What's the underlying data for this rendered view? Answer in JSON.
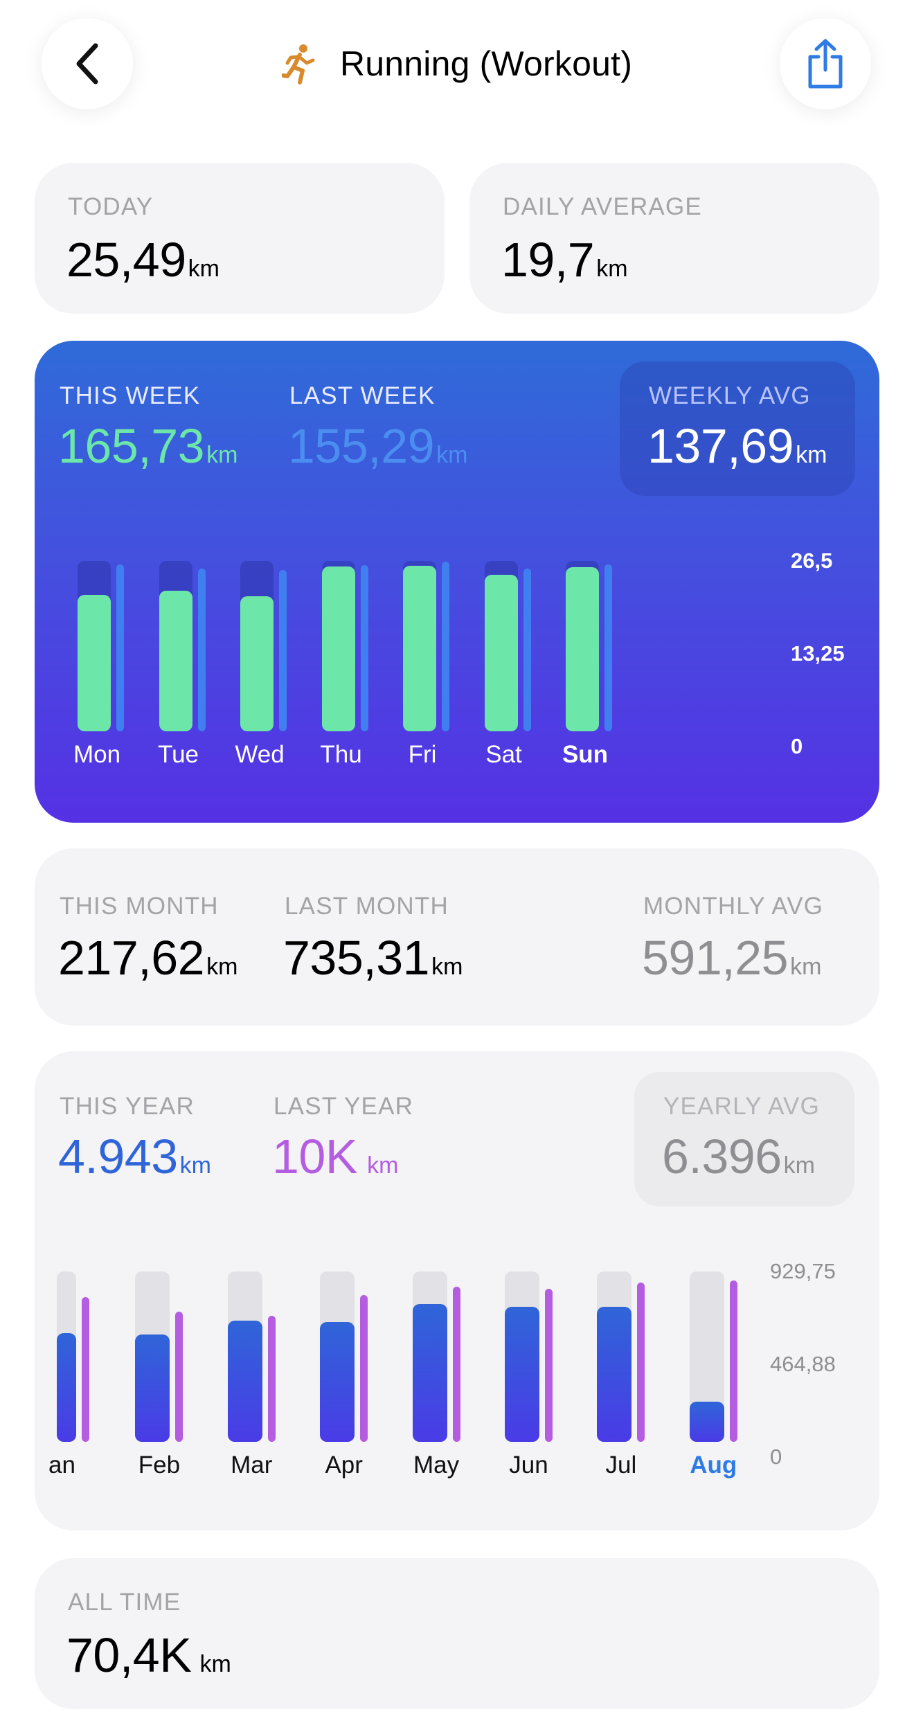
{
  "header": {
    "title": "Running (Workout)",
    "back_icon": "chevron-left-icon",
    "share_icon": "share-icon",
    "activity_icon": "running-person-icon",
    "activity_icon_color": "#d98a2c",
    "share_icon_color": "#2f7be6"
  },
  "today": {
    "label": "TODAY",
    "value": "25,49",
    "unit": "km"
  },
  "daily_average": {
    "label": "DAILY AVERAGE",
    "value": "19,7",
    "unit": "km"
  },
  "week": {
    "this_week": {
      "label": "THIS WEEK",
      "value": "165,73",
      "unit": "km",
      "color": "#6de6aa"
    },
    "last_week": {
      "label": "LAST WEEK",
      "value": "155,29",
      "unit": "km",
      "color": "#4b8ef0"
    },
    "weekly_avg": {
      "label": "WEEKLY AVG",
      "value": "137,69",
      "unit": "km"
    },
    "y_ticks": [
      "26,5",
      "13,25",
      "0"
    ]
  },
  "month": {
    "this_month": {
      "label": "THIS MONTH",
      "value": "217,62",
      "unit": "km"
    },
    "last_month": {
      "label": "LAST MONTH",
      "value": "735,31",
      "unit": "km"
    },
    "monthly_avg": {
      "label": "MONTHLY AVG",
      "value": "591,25",
      "unit": "km"
    }
  },
  "year": {
    "this_year": {
      "label": "THIS YEAR",
      "value": "4.943",
      "unit": "km",
      "color": "#2f65d8"
    },
    "last_year": {
      "label": "LAST YEAR",
      "value": "10K",
      "unit": "km",
      "color": "#b45de0"
    },
    "yearly_avg": {
      "label": "YEARLY AVG",
      "value": "6.396",
      "unit": "km"
    },
    "y_ticks": [
      "929,75",
      "464,88",
      "0"
    ]
  },
  "all_time": {
    "label": "ALL TIME",
    "value": "70,4K",
    "unit": "km"
  },
  "chart_data": [
    {
      "type": "bar",
      "categories": [
        "Mon",
        "Tue",
        "Wed",
        "Thu",
        "Fri",
        "Sat",
        "Sun"
      ],
      "highlight": "Sun",
      "ylim": [
        0,
        26.5
      ],
      "y_ticks": [
        26.5,
        13.25,
        0
      ],
      "series": [
        {
          "values": [
            21.2,
            21.9,
            21.0,
            25.6,
            25.7,
            24.3,
            25.5
          ],
          "color": "#6de6aa"
        },
        {
          "values": [
            26.0,
            25.3,
            25.1,
            25.9,
            26.4,
            25.3,
            26.0
          ],
          "color": "#3f7ff0"
        }
      ]
    },
    {
      "type": "bar",
      "categories": [
        "an",
        "Feb",
        "Mar",
        "Apr",
        "May",
        "Jun",
        "Jul",
        "Aug"
      ],
      "highlight": "Aug",
      "ylim": [
        0,
        929.75
      ],
      "y_ticks": [
        929.75,
        464.88,
        0
      ],
      "series": [
        {
          "values": [
            593,
            587,
            663,
            655,
            753,
            737,
            737,
            218
          ],
          "color": "#3a5ae0"
        },
        {
          "values": [
            791,
            712,
            688,
            800,
            845,
            835,
            870,
            880
          ],
          "color": "#b45de0"
        }
      ]
    }
  ]
}
